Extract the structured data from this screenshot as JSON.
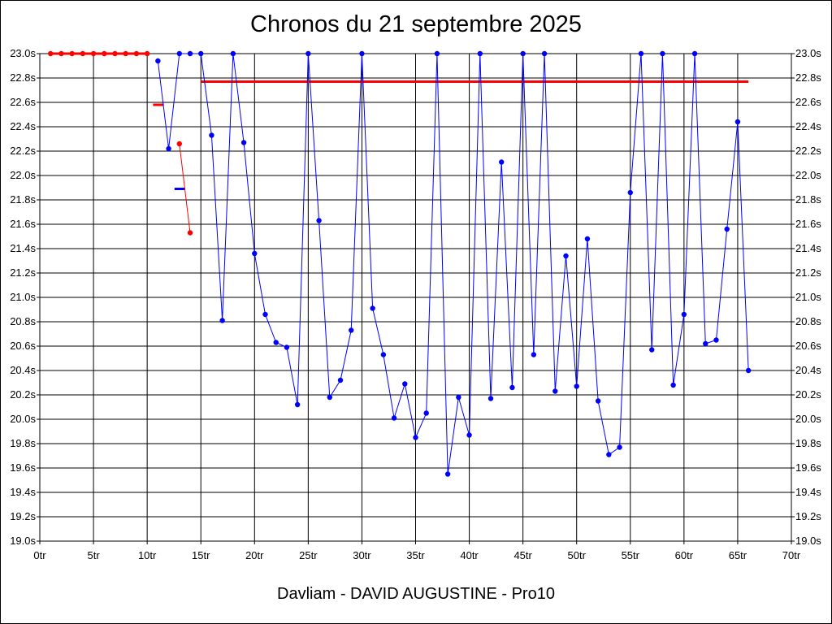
{
  "title": "Chronos du 21 septembre 2025",
  "footer": "Davliam - DAVID AUGUSTINE - Pro10",
  "colors": {
    "series": "#0000ff",
    "marker": "#0000ff",
    "red": "#ff0000",
    "grid": "#000000"
  },
  "chart_data": {
    "type": "line",
    "title": "Chronos du 21 septembre 2025",
    "xlabel": "",
    "ylabel": "",
    "xlim": [
      0,
      70
    ],
    "ylim": [
      19.0,
      23.0
    ],
    "grid": true,
    "x_ticks": [
      "0tr",
      "5tr",
      "10tr",
      "15tr",
      "20tr",
      "25tr",
      "30tr",
      "35tr",
      "40tr",
      "45tr",
      "50tr",
      "55tr",
      "60tr",
      "65tr",
      "70tr"
    ],
    "x_tick_values": [
      0,
      5,
      10,
      15,
      20,
      25,
      30,
      35,
      40,
      45,
      50,
      55,
      60,
      65,
      70
    ],
    "y_ticks": [
      "19.0s",
      "19.2s",
      "19.4s",
      "19.6s",
      "19.8s",
      "20.0s",
      "20.2s",
      "20.4s",
      "20.6s",
      "20.8s",
      "21.0s",
      "21.2s",
      "21.4s",
      "21.6s",
      "21.8s",
      "22.0s",
      "22.2s",
      "22.4s",
      "22.6s",
      "22.8s",
      "23.0s"
    ],
    "y_tick_values": [
      19.0,
      19.2,
      19.4,
      19.6,
      19.8,
      20.0,
      20.2,
      20.4,
      20.6,
      20.8,
      21.0,
      21.2,
      21.4,
      21.6,
      21.8,
      22.0,
      22.2,
      22.4,
      22.6,
      22.8,
      23.0
    ],
    "series": [
      {
        "color": "#0000ff",
        "x": [
          11,
          12,
          13,
          14,
          15,
          16,
          17,
          18,
          19,
          20,
          21,
          22,
          23,
          24,
          25,
          26,
          27,
          28,
          29,
          30,
          31,
          32,
          33,
          34,
          35,
          36,
          37,
          38,
          39,
          40,
          41,
          42,
          43,
          44,
          45,
          46,
          47,
          48,
          49,
          50,
          51,
          52,
          53,
          54,
          55,
          56,
          57,
          58,
          59,
          60,
          61,
          62,
          63,
          64,
          65,
          66
        ],
        "y": [
          22.94,
          22.22,
          23.0,
          23.0,
          23.0,
          22.33,
          20.81,
          23.0,
          22.27,
          21.36,
          20.86,
          20.63,
          20.59,
          20.12,
          23.0,
          21.63,
          20.18,
          20.32,
          20.73,
          23.0,
          20.91,
          20.53,
          20.01,
          20.29,
          19.85,
          20.05,
          23.0,
          19.55,
          20.18,
          19.87,
          23.0,
          20.17,
          22.11,
          20.26,
          23.0,
          20.53,
          23.0,
          20.23,
          21.34,
          20.27,
          21.48,
          20.15,
          19.71,
          19.77,
          21.86,
          23.0,
          20.57,
          23.0,
          20.28,
          20.86,
          23.0,
          20.62,
          20.65,
          21.56,
          22.44,
          20.4
        ]
      },
      {
        "color": "#ff0000",
        "x": [
          1,
          2,
          3,
          4,
          5,
          6,
          7,
          8,
          9,
          10
        ],
        "y": [
          23.0,
          23.0,
          23.0,
          23.0,
          23.0,
          23.0,
          23.0,
          23.0,
          23.0,
          23.0
        ]
      },
      {
        "color": "#ff0000",
        "x": [
          13,
          14
        ],
        "y": [
          22.26,
          21.53
        ]
      }
    ],
    "reference_lines": [
      {
        "color": "#ff0000",
        "x": [
          1,
          10
        ],
        "y": 23.0
      },
      {
        "color": "#ff0000",
        "x": [
          15,
          66
        ],
        "y": 22.77
      },
      {
        "color": "#ff0000",
        "x": [
          11,
          12
        ],
        "y": 22.58
      },
      {
        "color": "#0000ff",
        "x": [
          13,
          14
        ],
        "y": 21.89
      }
    ]
  }
}
